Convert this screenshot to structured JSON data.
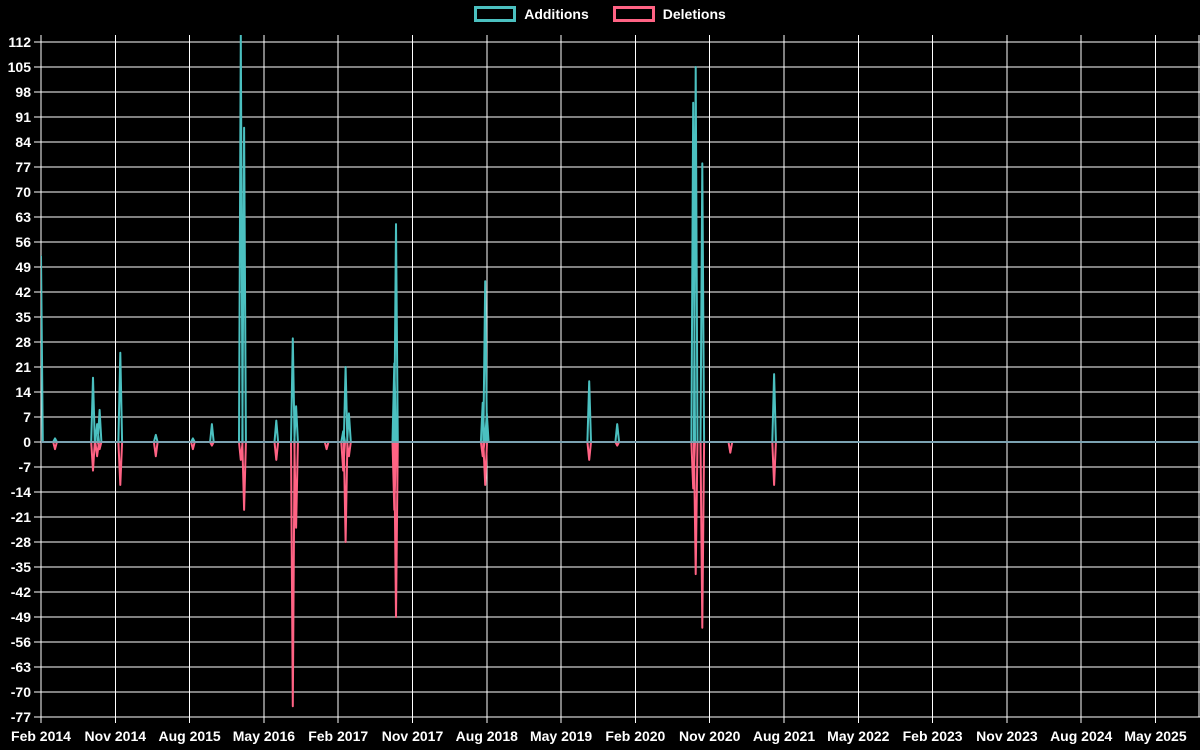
{
  "legend": {
    "additions": "Additions",
    "deletions": "Deletions"
  },
  "colors": {
    "additions": "#4bc0c0",
    "deletions": "#ff6384",
    "baseline": "#7fa0b0",
    "grid": "#ffffff",
    "axis": "#ffffff",
    "text": "#ffffff",
    "background": "#000000"
  },
  "chart_data": {
    "type": "line",
    "title": "",
    "xlabel": "",
    "ylabel": "",
    "ylim": [
      -77,
      112
    ],
    "y_tick_step": 7,
    "grid": true,
    "legend_position": "top-center",
    "x_start": "Feb 2014",
    "x_end": "May 2025",
    "months_per_tick": 9,
    "x_tick_labels": [
      "Feb 2014",
      "Nov 2014",
      "Aug 2015",
      "May 2016",
      "Feb 2017",
      "Nov 2017",
      "Aug 2018",
      "May 2019",
      "Feb 2020",
      "Nov 2020",
      "Aug 2021",
      "May 2022",
      "Feb 2023",
      "Nov 2023",
      "Aug 2024",
      "May 2025"
    ],
    "y_ticks": [
      112,
      105,
      98,
      91,
      84,
      77,
      70,
      63,
      56,
      49,
      42,
      35,
      28,
      21,
      14,
      7,
      0,
      -7,
      -14,
      -21,
      -28,
      -35,
      -42,
      -49,
      -56,
      -63,
      -70,
      -77
    ],
    "baseline_value": 0,
    "series": [
      {
        "name": "Additions",
        "color": "#4bc0c0",
        "spikes": [
          {
            "m": 0.0,
            "date": "Feb 2014",
            "v": 52
          },
          {
            "m": 1.7,
            "date": "Mar 2014",
            "v": 1
          },
          {
            "m": 6.3,
            "date": "Aug 2014",
            "v": 18
          },
          {
            "m": 6.8,
            "date": "Sep 2014",
            "v": 5
          },
          {
            "m": 7.1,
            "date": "Sep 2014",
            "v": 9
          },
          {
            "m": 9.6,
            "date": "Nov 2014",
            "v": 25
          },
          {
            "m": 13.9,
            "date": "Apr 2015",
            "v": 2
          },
          {
            "m": 18.4,
            "date": "Aug 2015",
            "v": 1
          },
          {
            "m": 20.7,
            "date": "Oct 2015",
            "v": 5
          },
          {
            "m": 24.2,
            "date": "Feb 2016",
            "v": 114
          },
          {
            "m": 24.6,
            "date": "Mar 2016",
            "v": 88
          },
          {
            "m": 28.5,
            "date": "Jun 2016",
            "v": 6
          },
          {
            "m": 30.5,
            "date": "Aug 2016",
            "v": 29
          },
          {
            "m": 30.9,
            "date": "Sep 2016",
            "v": 10
          },
          {
            "m": 36.6,
            "date": "Feb 2017",
            "v": 3
          },
          {
            "m": 36.9,
            "date": "Mar 2017",
            "v": 21
          },
          {
            "m": 37.3,
            "date": "Mar 2017",
            "v": 8
          },
          {
            "m": 42.8,
            "date": "Aug 2017",
            "v": 22
          },
          {
            "m": 43.0,
            "date": "Sep 2017",
            "v": 61
          },
          {
            "m": 53.5,
            "date": "Jul 2018",
            "v": 11
          },
          {
            "m": 53.8,
            "date": "Aug 2018",
            "v": 45
          },
          {
            "m": 54.0,
            "date": "Aug 2018",
            "v": 8
          },
          {
            "m": 66.4,
            "date": "Aug 2019",
            "v": 17
          },
          {
            "m": 69.8,
            "date": "Dec 2019",
            "v": 5
          },
          {
            "m": 79.0,
            "date": "Sep 2020",
            "v": 95
          },
          {
            "m": 79.3,
            "date": "Sep 2020",
            "v": 105
          },
          {
            "m": 80.1,
            "date": "Oct 2020",
            "v": 78
          },
          {
            "m": 88.8,
            "date": "Jul 2021",
            "v": 19
          }
        ]
      },
      {
        "name": "Deletions",
        "color": "#ff6384",
        "spikes": [
          {
            "m": 1.7,
            "date": "Mar 2014",
            "v": -2
          },
          {
            "m": 6.3,
            "date": "Aug 2014",
            "v": -8
          },
          {
            "m": 6.8,
            "date": "Sep 2014",
            "v": -4
          },
          {
            "m": 7.1,
            "date": "Sep 2014",
            "v": -2
          },
          {
            "m": 9.6,
            "date": "Nov 2014",
            "v": -12
          },
          {
            "m": 13.9,
            "date": "Apr 2015",
            "v": -4
          },
          {
            "m": 18.4,
            "date": "Aug 2015",
            "v": -2
          },
          {
            "m": 20.7,
            "date": "Oct 2015",
            "v": -1
          },
          {
            "m": 24.2,
            "date": "Feb 2016",
            "v": -5
          },
          {
            "m": 24.6,
            "date": "Mar 2016",
            "v": -19
          },
          {
            "m": 28.5,
            "date": "Jun 2016",
            "v": -5
          },
          {
            "m": 30.5,
            "date": "Aug 2016",
            "v": -74
          },
          {
            "m": 30.9,
            "date": "Sep 2016",
            "v": -24
          },
          {
            "m": 34.6,
            "date": "Dec 2016",
            "v": -2
          },
          {
            "m": 36.6,
            "date": "Feb 2017",
            "v": -8
          },
          {
            "m": 36.9,
            "date": "Mar 2017",
            "v": -28
          },
          {
            "m": 37.3,
            "date": "Mar 2017",
            "v": -4
          },
          {
            "m": 42.8,
            "date": "Aug 2017",
            "v": -19
          },
          {
            "m": 43.0,
            "date": "Sep 2017",
            "v": -49
          },
          {
            "m": 53.5,
            "date": "Jul 2018",
            "v": -4
          },
          {
            "m": 53.8,
            "date": "Aug 2018",
            "v": -12
          },
          {
            "m": 66.4,
            "date": "Aug 2019",
            "v": -5
          },
          {
            "m": 69.8,
            "date": "Dec 2019",
            "v": -1
          },
          {
            "m": 79.0,
            "date": "Sep 2020",
            "v": -13
          },
          {
            "m": 79.3,
            "date": "Sep 2020",
            "v": -37
          },
          {
            "m": 80.1,
            "date": "Oct 2020",
            "v": -52
          },
          {
            "m": 83.5,
            "date": "Jan 2021",
            "v": -3
          },
          {
            "m": 88.8,
            "date": "Jul 2021",
            "v": -12
          }
        ]
      }
    ]
  }
}
